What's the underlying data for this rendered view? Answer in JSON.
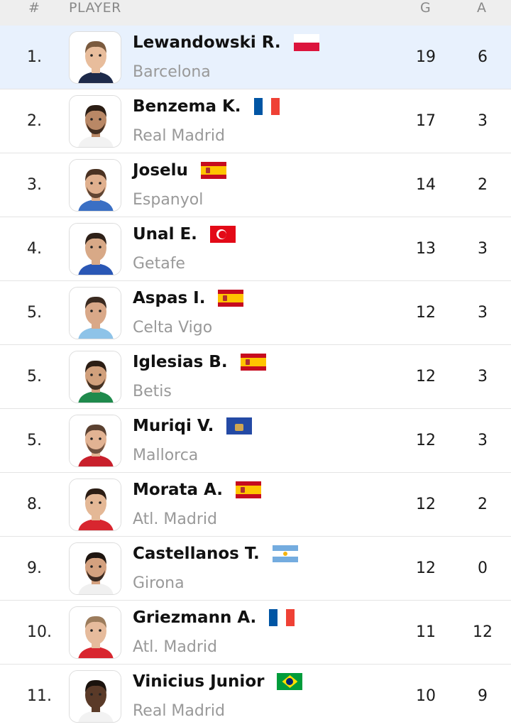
{
  "header": {
    "rank": "#",
    "player": "PLAYER",
    "goals": "G",
    "assists": "A"
  },
  "rows": [
    {
      "rank": "1.",
      "name": "Lewandowski R.",
      "team": "Barcelona",
      "goals": "19",
      "assists": "6",
      "flag": "poland",
      "highlight": true,
      "shirt": "#1d2a4a",
      "skin": "#e8bd9c",
      "hair": "#7a5a3e",
      "beard": false
    },
    {
      "rank": "2.",
      "name": "Benzema K.",
      "team": "Real Madrid",
      "goals": "17",
      "assists": "3",
      "flag": "france",
      "highlight": false,
      "shirt": "#f2f2f2",
      "skin": "#b98866",
      "hair": "#2b1d14",
      "beard": true
    },
    {
      "rank": "3.",
      "name": "Joselu",
      "team": "Espanyol",
      "goals": "14",
      "assists": "2",
      "flag": "spain",
      "highlight": false,
      "shirt": "#3a6fc4",
      "skin": "#e0b08e",
      "hair": "#4a3222",
      "beard": true
    },
    {
      "rank": "4.",
      "name": "Unal E.",
      "team": "Getafe",
      "goals": "13",
      "assists": "3",
      "flag": "turkey",
      "highlight": false,
      "shirt": "#2a57b5",
      "skin": "#d8a987",
      "hair": "#2e2018",
      "beard": false
    },
    {
      "rank": "5.",
      "name": "Aspas I.",
      "team": "Celta Vigo",
      "goals": "12",
      "assists": "3",
      "flag": "spain",
      "highlight": false,
      "shirt": "#8ec3e8",
      "skin": "#d9a888",
      "hair": "#3a2a20",
      "beard": false
    },
    {
      "rank": "5.",
      "name": "Iglesias B.",
      "team": "Betis",
      "goals": "12",
      "assists": "3",
      "flag": "spain",
      "highlight": false,
      "shirt": "#1f8a4c",
      "skin": "#d1a07c",
      "hair": "#2b1d14",
      "beard": true
    },
    {
      "rank": "5.",
      "name": "Muriqi V.",
      "team": "Mallorca",
      "goals": "12",
      "assists": "3",
      "flag": "kosovo",
      "highlight": false,
      "shirt": "#c8202c",
      "skin": "#e2b393",
      "hair": "#5a4030",
      "beard": true
    },
    {
      "rank": "8.",
      "name": "Morata A.",
      "team": "Atl. Madrid",
      "goals": "12",
      "assists": "2",
      "flag": "spain",
      "highlight": false,
      "shirt": "#d8262f",
      "skin": "#e4b896",
      "hair": "#2b1d14",
      "beard": false
    },
    {
      "rank": "9.",
      "name": "Castellanos T.",
      "team": "Girona",
      "goals": "12",
      "assists": "0",
      "flag": "argentina",
      "highlight": false,
      "shirt": "#f0f0f0",
      "skin": "#d4a17f",
      "hair": "#1e1510",
      "beard": true
    },
    {
      "rank": "10.",
      "name": "Griezmann A.",
      "team": "Atl. Madrid",
      "goals": "11",
      "assists": "12",
      "flag": "france",
      "highlight": false,
      "shirt": "#d8262f",
      "skin": "#e6bb9c",
      "hair": "#9c7c5c",
      "beard": false
    },
    {
      "rank": "11.",
      "name": "Vinicius Junior",
      "team": "Real Madrid",
      "goals": "10",
      "assists": "9",
      "flag": "brazil",
      "highlight": false,
      "shirt": "#f2f2f2",
      "skin": "#5a3a28",
      "hair": "#1a120d",
      "beard": false
    }
  ]
}
